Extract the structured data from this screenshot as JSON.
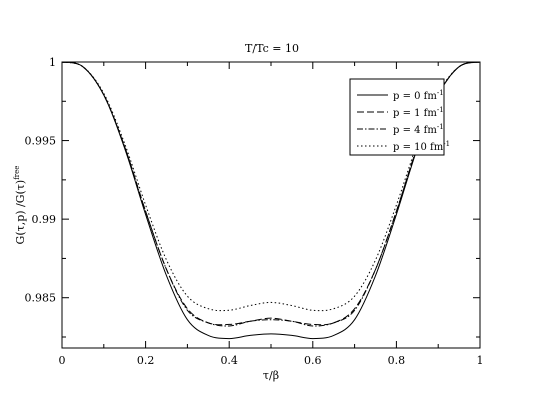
{
  "chart_data": {
    "type": "line",
    "title": "T/Tc = 10",
    "xlabel": "τ/β",
    "ylabel": {
      "base": "G(τ,p)  /G(τ)",
      "sup": "free"
    },
    "xlim": [
      0,
      1
    ],
    "ylim": [
      0.9818,
      1.0
    ],
    "x_ticks": [
      0,
      0.2,
      0.4,
      0.6,
      0.8,
      1
    ],
    "x_tick_labels": [
      "0",
      "0.2",
      "0.4",
      "0.6",
      "0.8",
      "1"
    ],
    "y_ticks": [
      0.985,
      0.99,
      0.995,
      1
    ],
    "y_tick_labels": [
      "0.985",
      "0.99",
      "0.995",
      "1"
    ],
    "grid": false,
    "legend_position": "top-right",
    "series": [
      {
        "name": "p = 0 fm",
        "name_sup": "-1",
        "dash": "solid",
        "x": [
          0,
          0.05,
          0.1,
          0.15,
          0.2,
          0.25,
          0.3,
          0.35,
          0.4,
          0.45,
          0.5,
          0.55,
          0.6,
          0.65,
          0.7,
          0.75,
          0.8,
          0.85,
          0.9,
          0.95,
          1
        ],
        "y": [
          1.0,
          0.9997,
          0.9979,
          0.9945,
          0.9903,
          0.9864,
          0.9836,
          0.9826,
          0.9824,
          0.9826,
          0.9827,
          0.9826,
          0.9824,
          0.9826,
          0.9836,
          0.9864,
          0.9903,
          0.9945,
          0.9979,
          0.9997,
          1.0
        ]
      },
      {
        "name": "p = 1 fm",
        "name_sup": "-1",
        "dash": "dashed",
        "x": [
          0,
          0.05,
          0.1,
          0.15,
          0.2,
          0.25,
          0.3,
          0.35,
          0.4,
          0.45,
          0.5,
          0.55,
          0.6,
          0.65,
          0.7,
          0.75,
          0.8,
          0.85,
          0.9,
          0.95,
          1
        ],
        "y": [
          1.0,
          0.9997,
          0.9979,
          0.9946,
          0.9905,
          0.9868,
          0.9843,
          0.9834,
          0.9833,
          0.9835,
          0.9837,
          0.9835,
          0.9833,
          0.9834,
          0.9843,
          0.9868,
          0.9905,
          0.9946,
          0.9979,
          0.9997,
          1.0
        ]
      },
      {
        "name": "p = 4 fm",
        "name_sup": "-1",
        "dash": "dashdot",
        "x": [
          0,
          0.05,
          0.1,
          0.15,
          0.2,
          0.25,
          0.3,
          0.35,
          0.4,
          0.45,
          0.5,
          0.55,
          0.6,
          0.65,
          0.7,
          0.75,
          0.8,
          0.85,
          0.9,
          0.95,
          1
        ],
        "y": [
          1.0,
          0.9997,
          0.9979,
          0.9946,
          0.9905,
          0.9868,
          0.9842,
          0.9834,
          0.9832,
          0.9835,
          0.9836,
          0.9835,
          0.9832,
          0.9834,
          0.9842,
          0.9868,
          0.9905,
          0.9946,
          0.9979,
          0.9997,
          1.0
        ]
      },
      {
        "name": "p = 10 fm",
        "name_sup": "-1",
        "dash": "dotted",
        "x": [
          0,
          0.05,
          0.1,
          0.15,
          0.2,
          0.25,
          0.3,
          0.35,
          0.4,
          0.45,
          0.5,
          0.55,
          0.6,
          0.65,
          0.7,
          0.75,
          0.8,
          0.85,
          0.9,
          0.95,
          1
        ],
        "y": [
          1.0,
          0.9997,
          0.998,
          0.9948,
          0.9909,
          0.9874,
          0.9851,
          0.9843,
          0.9842,
          0.9845,
          0.9847,
          0.9845,
          0.9842,
          0.9843,
          0.9851,
          0.9874,
          0.9909,
          0.9948,
          0.998,
          0.9997,
          1.0
        ]
      }
    ]
  }
}
